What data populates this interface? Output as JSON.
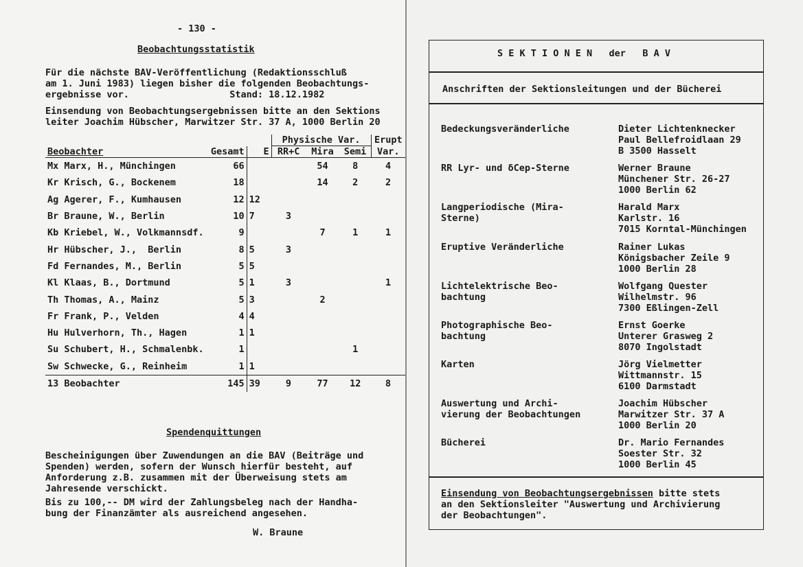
{
  "left": {
    "page_number": "- 130 -",
    "title": "Beobachtungsstatistik",
    "intro": [
      "Für die nächste BAV-Veröffentlichung (Redaktionsschluß",
      "am 1. Juni 1983) liegen bisher die folgenden Beobachtungs-",
      "ergebnisse vor.                  Stand: 18.12.1982",
      "Einsendung von Beobachtungsergebnissen bitte an den Sektions",
      "leiter Joachim Hübscher, Marwitzer Str. 37 A, 1000 Berlin 20"
    ],
    "table": {
      "group_headers": {
        "physische": "Physische Var.",
        "erupt": "Erupt"
      },
      "headers": [
        "Beobachter",
        "Gesamt",
        "E",
        "RR+C",
        "Mira",
        "Semi",
        "Var."
      ],
      "rows": [
        [
          "Mx Marx, H., Münchingen",
          "66",
          "",
          "",
          "54",
          "8",
          "4"
        ],
        [
          "Kr Krisch, G., Bockenem",
          "18",
          "",
          "",
          "14",
          "2",
          "2"
        ],
        [
          "Ag Agerer, F., Kumhausen",
          "12",
          "12",
          "",
          "",
          "",
          ""
        ],
        [
          "Br Braune, W., Berlin",
          "10",
          "7",
          "3",
          "",
          "",
          ""
        ],
        [
          "Kb Kriebel, W., Volkmannsdf.",
          "9",
          "",
          "",
          "7",
          "1",
          "1"
        ],
        [
          "Hr Hübscher, J.,  Berlin",
          "8",
          "5",
          "3",
          "",
          "",
          ""
        ],
        [
          "Fd Fernandes, M., Berlin",
          "5",
          "5",
          "",
          "",
          "",
          ""
        ],
        [
          "Kl Klaas, B., Dortmund",
          "5",
          "1",
          "3",
          "",
          "",
          "1"
        ],
        [
          "Th Thomas, A., Mainz",
          "5",
          "3",
          "",
          "2",
          "",
          ""
        ],
        [
          "Fr Frank, P., Velden",
          "4",
          "4",
          "",
          "",
          "",
          ""
        ],
        [
          "Hu Hulverhorn, Th., Hagen",
          "1",
          "1",
          "",
          "",
          "",
          ""
        ],
        [
          "Su Schubert, H., Schmalenbk.",
          "1",
          "",
          "",
          "",
          "1",
          ""
        ],
        [
          "Sw Schwecke, G., Reinheim",
          "1",
          "1",
          "",
          "",
          "",
          ""
        ]
      ],
      "total": [
        "13 Beobachter",
        "145",
        "39",
        "9",
        "77",
        "12",
        "8"
      ]
    },
    "spenden_title": "Spendenquittungen",
    "spenden": [
      "Bescheinigungen über Zuwendungen an die BAV (Beiträge und",
      "Spenden) werden, sofern der Wunsch hierfür besteht, auf",
      "Anforderung z.B. zusammen mit der Überweisung stets am",
      "Jahresende verschickt.",
      "Bis zu 100,-- DM wird der Zahlungsbeleg nach der Handha-",
      "bung der Finanzämter als ausreichend angesehen."
    ],
    "signature": "W. Braune"
  },
  "right": {
    "header": "S E K T I O N E N   der   B A V",
    "subheader": "Anschriften der Sektionsleitungen und der Bücherei",
    "sections": [
      {
        "name": [
          "Bedeckungsveränderliche"
        ],
        "address": [
          "Dieter Lichtenknecker",
          "Paul Bellefroidlaan 29",
          "B 3500 Hasselt"
        ]
      },
      {
        "name": [
          "RR Lyr- und δCep-Sterne"
        ],
        "address": [
          "Werner Braune",
          "Münchener Str. 26-27",
          "1000 Berlin 62"
        ]
      },
      {
        "name": [
          "Langperiodische (Mira-",
          "Sterne)"
        ],
        "address": [
          "Harald Marx",
          "Karlstr. 16",
          "7015 Korntal-Münchingen"
        ]
      },
      {
        "name": [
          "Eruptive Veränderliche"
        ],
        "address": [
          "Rainer Lukas",
          "Königsbacher Zeile 9",
          "1000 Berlin 28"
        ]
      },
      {
        "name": [
          "Lichtelektrische Beo-",
          "bachtung"
        ],
        "address": [
          "Wolfgang Quester",
          "Wilhelmstr. 96",
          "7300 Eßlingen-Zell"
        ]
      },
      {
        "name": [
          "Photographische Beo-",
          "bachtung"
        ],
        "address": [
          "Ernst Goerke",
          "Unterer Grasweg 2",
          "8070 Ingolstadt"
        ]
      },
      {
        "name": [
          "Karten"
        ],
        "address": [
          "Jörg Vielmetter",
          "Wittmannstr. 15",
          "6100 Darmstadt"
        ]
      },
      {
        "name": [
          "Auswertung und Archi-",
          "vierung der Beobachtungen"
        ],
        "address": [
          "Joachim Hübscher",
          "Marwitzer Str. 37 A",
          "1000 Berlin 20"
        ]
      },
      {
        "name": [
          "Bücherei"
        ],
        "address": [
          "Dr. Mario Fernandes",
          "Soester Str. 32",
          "1000 Berlin 45"
        ]
      }
    ],
    "footer_underlined": "Einsendung von Beobachtungsergebnissen",
    "footer": [
      " bitte stets",
      "an den Sektionsleiter \"Auswertung und Archivierung",
      "der Beobachtungen\"."
    ]
  }
}
